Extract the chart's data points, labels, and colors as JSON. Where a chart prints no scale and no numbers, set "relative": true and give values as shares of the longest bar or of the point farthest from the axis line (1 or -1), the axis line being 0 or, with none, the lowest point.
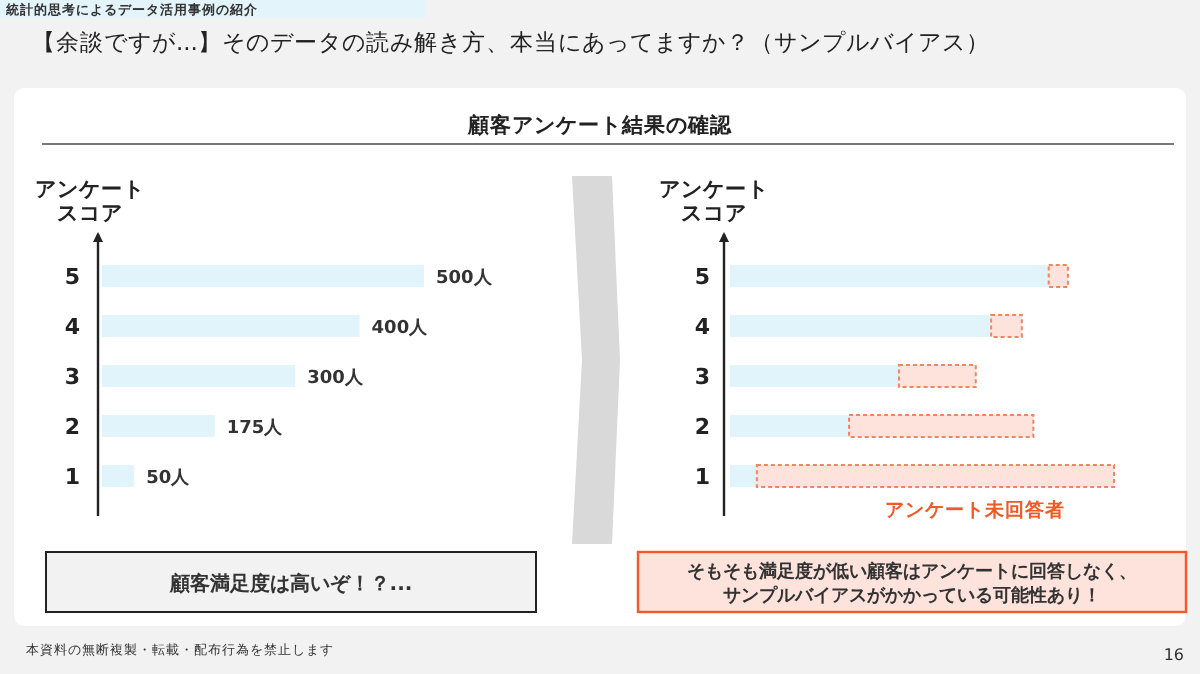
{
  "chart_data": [
    {
      "type": "bar",
      "orientation": "horizontal",
      "title": "【余談ですが...】そのデータの読み解き方、本当にあってますか？（サンプルバイアス）",
      "ylabel": "アンケートスコア",
      "categories": [
        "5",
        "4",
        "3",
        "2",
        "1"
      ],
      "values": [
        500,
        400,
        300,
        175,
        50
      ],
      "value_labels": [
        "500人",
        "400人",
        "300人",
        "175人",
        "50人"
      ],
      "color": "#e1f3fb",
      "annotations": [
        "統計的思考によるデータ活用事例の紹介",
        "顧客アンケート結果の確認",
        "顧客満足度は高いぞ！？...",
        "本資料の無断複製・転載・配布行為を禁止します",
        "16"
      ]
    },
    {
      "type": "bar",
      "orientation": "horizontal",
      "stacked": true,
      "relative": true,
      "ylabel": "アンケートスコア",
      "categories": [
        "5",
        "4",
        "3",
        "2",
        "1"
      ],
      "series": [
        {
          "color": "#e1f3fb",
          "values": [
            0.83,
            0.68,
            0.44,
            0.31,
            0.07
          ]
        },
        {
          "name": "アンケート未回答者",
          "color": "#fde3dc",
          "values": [
            0.05,
            0.08,
            0.2,
            0.48,
            0.93
          ]
        }
      ],
      "annotations": [
        "そもそも満足度が低い顧客はアンケートに回答しなく、サンプルバイアスがかかっている可能性あり！"
      ]
    }
  ]
}
